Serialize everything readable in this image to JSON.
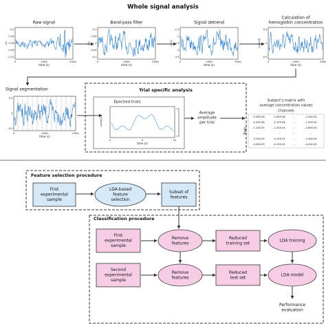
{
  "header": {
    "title": "Whole signal analysis"
  },
  "panels": [
    {
      "title": [
        "Raw signal"
      ],
      "ylabel": "(V)",
      "yticks": [
        0.3,
        0.28,
        0.26,
        0.24,
        0.22
      ],
      "xticks": [
        0,
        1000,
        2000
      ],
      "xlabel": "time (s)"
    },
    {
      "title": [
        "Band-pass filter"
      ],
      "ylabel": "(V)",
      "yticks": [
        0.1,
        0.05,
        0,
        -0.05,
        -0.1
      ],
      "xticks": [
        0,
        1000,
        2000
      ],
      "xlabel": "time (s)"
    },
    {
      "title": [
        "Signal detrend"
      ],
      "ylabel": "(mV)",
      "yticks": [
        -1.5,
        -2,
        -2.5,
        -3,
        -3.5
      ],
      "xticks": [
        0,
        1000,
        2000
      ],
      "xlabel": "time (s)"
    },
    {
      "title": [
        "Calculation of",
        "hemoglobin concentration"
      ],
      "ylabel": "(umol/l)",
      "yticks": [
        0.5,
        0,
        -0.5
      ],
      "xticks": [
        0,
        1000,
        2000
      ],
      "xlabel": "time (s)"
    }
  ],
  "segmentation": {
    "title": "Signal segmentation",
    "yticks": [
      0.5,
      0,
      -0.5
    ],
    "xticks": [
      0,
      1000,
      2000
    ],
    "xlabel": "time (s)"
  },
  "trial_analysis": {
    "title": "Trial specific analysis",
    "epoched": {
      "title": "Epoched trials",
      "ylabel": "(umol/l)",
      "xticks": [
        0,
        5,
        10
      ],
      "xlabel": "time (s)"
    },
    "average": [
      "Average",
      "amplitude",
      "per trial"
    ],
    "matrix": {
      "title": [
        "Subject's matrix with",
        "average concentration values"
      ],
      "columns_label": "Channels",
      "rows_label": "Trials",
      "rows": [
        [
          "-5.58E-06",
          "-5.50E-06",
          "...",
          "-1.00E-05"
        ],
        [
          "-5.55E-06",
          "-5.15E-06",
          "...",
          "-1.20E-05"
        ],
        [
          "-1.10E-05",
          "-1.20E-05",
          "...",
          "-2.80E-05"
        ],
        [
          "...",
          "...",
          "...",
          "..."
        ],
        [
          "-3.10E-05",
          "-3.10E-05",
          "...",
          "-2.40E-05"
        ],
        [
          "-4.00E-05",
          "-4.10E-05",
          "...",
          "-4.00E-05"
        ]
      ]
    }
  },
  "feature_selection": {
    "title": "Feature selection procedure",
    "nodes": [
      {
        "label": [
          "First",
          "experimental",
          "sample"
        ]
      },
      {
        "label": [
          "LDA-based",
          "feature",
          "selection"
        ]
      },
      {
        "label": [
          "Subset of",
          "features"
        ]
      }
    ]
  },
  "classification": {
    "title": "Classification procedure",
    "nodes": [
      {
        "label": [
          "First",
          "experimental",
          "sample"
        ]
      },
      {
        "label": [
          "Remove",
          "features"
        ]
      },
      {
        "label": [
          "Reduced",
          "training set"
        ]
      },
      {
        "label": [
          "LDA training"
        ]
      },
      {
        "label": [
          "Second",
          "experimental",
          "sample"
        ]
      },
      {
        "label": [
          "Remove",
          "features"
        ]
      },
      {
        "label": [
          "Reduced",
          "test set"
        ]
      },
      {
        "label": [
          "LDA model"
        ]
      },
      {
        "label": [
          "Performance",
          "evaluation"
        ]
      }
    ]
  }
}
